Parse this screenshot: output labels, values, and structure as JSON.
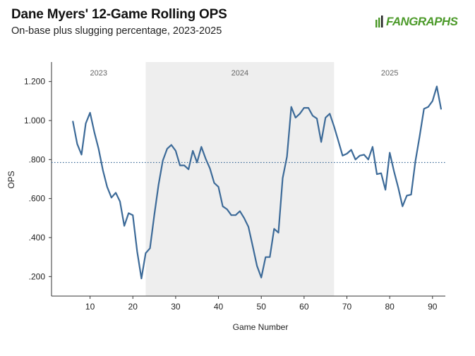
{
  "header": {
    "title": "Dane Myers' 12-Game Rolling OPS",
    "subtitle": "On-base plus slugging percentage, 2023-2025",
    "logo_text": "FANGRAPHS"
  },
  "colors": {
    "line": "#3c6a98",
    "shade": "#eeeeee",
    "reference": "#3c6a98",
    "logo": "#4c9a2a"
  },
  "chart_data": {
    "type": "line",
    "title": "Dane Myers' 12-Game Rolling OPS",
    "subtitle": "On-base plus slugging percentage, 2023-2025",
    "xlabel": "Game Number",
    "ylabel": "OPS",
    "xlim": [
      1,
      93
    ],
    "ylim": [
      0.1,
      1.3
    ],
    "x_ticks": [
      10,
      20,
      30,
      40,
      50,
      60,
      70,
      80,
      90
    ],
    "x_tick_labels": [
      "10",
      "20",
      "30",
      "40",
      "50",
      "60",
      "70",
      "80",
      "90"
    ],
    "y_ticks": [
      0.2,
      0.4,
      0.6,
      0.8,
      1.0,
      1.2
    ],
    "y_tick_labels": [
      ".200",
      ".400",
      ".600",
      ".800",
      "1.000",
      "1.200"
    ],
    "grid": false,
    "reference_line": {
      "value": 0.785,
      "style": "dotted"
    },
    "seasons": [
      {
        "label": "2023",
        "start": 1,
        "end": 23,
        "shaded": false
      },
      {
        "label": "2024",
        "start": 23,
        "end": 67,
        "shaded": true
      },
      {
        "label": "2025",
        "start": 67,
        "end": 93,
        "shaded": false
      }
    ],
    "series": [
      {
        "x": [
          6,
          7,
          8,
          9,
          10,
          11,
          12,
          13,
          14,
          15,
          16,
          17,
          18,
          19,
          20,
          21,
          22,
          23,
          24,
          25,
          26,
          27,
          28,
          29,
          30,
          31,
          32,
          33,
          34,
          35,
          36,
          37,
          38,
          39,
          40,
          41,
          42,
          43,
          44,
          45,
          46,
          47,
          48,
          49,
          50,
          51,
          52,
          53,
          54,
          55,
          56,
          57,
          58,
          59,
          60,
          61,
          62,
          63,
          64,
          65,
          66,
          67,
          68,
          69,
          70,
          71,
          72,
          73,
          74,
          75,
          76,
          77,
          78,
          79,
          80,
          81,
          82,
          83,
          84,
          85,
          86,
          87,
          88,
          89,
          90,
          91,
          92
        ],
        "values": [
          0.995,
          0.88,
          0.825,
          0.985,
          1.04,
          0.94,
          0.855,
          0.745,
          0.66,
          0.605,
          0.63,
          0.585,
          0.46,
          0.525,
          0.515,
          0.33,
          0.19,
          0.32,
          0.345,
          0.515,
          0.67,
          0.795,
          0.855,
          0.875,
          0.845,
          0.77,
          0.77,
          0.75,
          0.845,
          0.785,
          0.865,
          0.805,
          0.755,
          0.68,
          0.66,
          0.56,
          0.545,
          0.515,
          0.515,
          0.535,
          0.5,
          0.455,
          0.355,
          0.255,
          0.195,
          0.3,
          0.3,
          0.445,
          0.425,
          0.705,
          0.815,
          1.07,
          1.015,
          1.035,
          1.065,
          1.065,
          1.025,
          1.01,
          0.89,
          1.015,
          1.035,
          0.97,
          0.895,
          0.82,
          0.83,
          0.85,
          0.8,
          0.82,
          0.825,
          0.8,
          0.865,
          0.725,
          0.73,
          0.645,
          0.835,
          0.74,
          0.655,
          0.56,
          0.615,
          0.62,
          0.79,
          0.92,
          1.06,
          1.07,
          1.1,
          1.175,
          1.06
        ]
      }
    ]
  }
}
